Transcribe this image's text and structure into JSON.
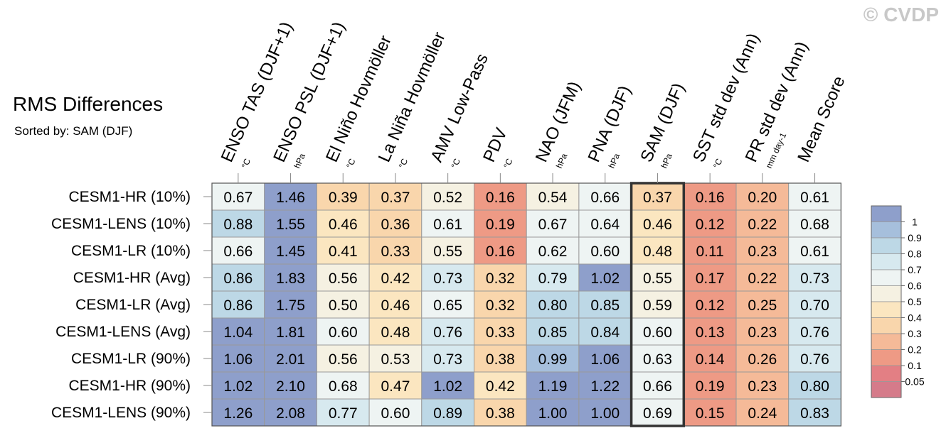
{
  "watermark": "© CVDP",
  "chart_data": {
    "type": "heatmap",
    "title": "RMS Differences",
    "subtitle": "Sorted by: SAM (DJF)",
    "columns": [
      {
        "label": "ENSO TAS (DJF+1)",
        "unit": "°C"
      },
      {
        "label": "ENSO PSL (DJF+1)",
        "unit": "hPa"
      },
      {
        "label": "El Niño Hovmöller",
        "unit": "°C"
      },
      {
        "label": "La Niña Hovmöller",
        "unit": "°C"
      },
      {
        "label": "AMV Low-Pass",
        "unit": "°C"
      },
      {
        "label": "PDV",
        "unit": "°C"
      },
      {
        "label": "NAO (JFM)",
        "unit": "hPa"
      },
      {
        "label": "PNA (DJF)",
        "unit": "hPa"
      },
      {
        "label": "SAM (DJF)",
        "unit": "hPa"
      },
      {
        "label": "SST std dev (Ann)",
        "unit": "°C"
      },
      {
        "label": "PR std dev (Ann)",
        "unit": "mm day-1"
      },
      {
        "label": "Mean Score",
        "unit": ""
      }
    ],
    "rows": [
      {
        "label": "CESM1-HR (10%)",
        "values": [
          0.67,
          1.46,
          0.39,
          0.37,
          0.52,
          0.16,
          0.54,
          0.66,
          0.37,
          0.16,
          0.2,
          0.61
        ]
      },
      {
        "label": "CESM1-LENS (10%)",
        "values": [
          0.88,
          1.55,
          0.46,
          0.36,
          0.61,
          0.19,
          0.67,
          0.64,
          0.46,
          0.12,
          0.22,
          0.68
        ]
      },
      {
        "label": "CESM1-LR (10%)",
        "values": [
          0.66,
          1.45,
          0.41,
          0.33,
          0.55,
          0.16,
          0.62,
          0.6,
          0.48,
          0.11,
          0.23,
          0.61
        ]
      },
      {
        "label": "CESM1-HR (Avg)",
        "values": [
          0.86,
          1.83,
          0.56,
          0.42,
          0.73,
          0.32,
          0.79,
          1.02,
          0.55,
          0.17,
          0.22,
          0.73
        ]
      },
      {
        "label": "CESM1-LR (Avg)",
        "values": [
          0.86,
          1.75,
          0.5,
          0.46,
          0.65,
          0.32,
          0.8,
          0.85,
          0.59,
          0.12,
          0.25,
          0.7
        ]
      },
      {
        "label": "CESM1-LENS (Avg)",
        "values": [
          1.04,
          1.81,
          0.6,
          0.48,
          0.76,
          0.33,
          0.85,
          0.84,
          0.6,
          0.13,
          0.23,
          0.76
        ]
      },
      {
        "label": "CESM1-LR (90%)",
        "values": [
          1.06,
          2.01,
          0.56,
          0.53,
          0.73,
          0.38,
          0.99,
          1.06,
          0.63,
          0.14,
          0.26,
          0.76
        ]
      },
      {
        "label": "CESM1-HR (90%)",
        "values": [
          1.02,
          2.1,
          0.68,
          0.47,
          1.02,
          0.42,
          1.19,
          1.22,
          0.66,
          0.19,
          0.23,
          0.8
        ]
      },
      {
        "label": "CESM1-LENS (90%)",
        "values": [
          1.26,
          2.08,
          0.77,
          0.6,
          0.89,
          0.38,
          1.0,
          1.0,
          0.69,
          0.15,
          0.24,
          0.83
        ]
      }
    ],
    "highlighted_column": "SAM (DJF)",
    "colorbar": {
      "tick_labels": [
        "1",
        "0.9",
        "0.8",
        "0.7",
        "0.6",
        "0.5",
        "0.4",
        "0.3",
        "0.2",
        "0.1",
        "0.05"
      ],
      "level_values": [
        1.0,
        0.9,
        0.8,
        0.7,
        0.6,
        0.5,
        0.4,
        0.3,
        0.2,
        0.1,
        0.05
      ],
      "colors": [
        "#8e9fcb",
        "#a6bfdc",
        "#bdd8e6",
        "#d7e9ef",
        "#eef4f3",
        "#f5f1e2",
        "#fbe6c0",
        "#f9d6ac",
        "#f5ba98",
        "#ee9a85",
        "#e37f84",
        "#d57b8a"
      ]
    }
  }
}
